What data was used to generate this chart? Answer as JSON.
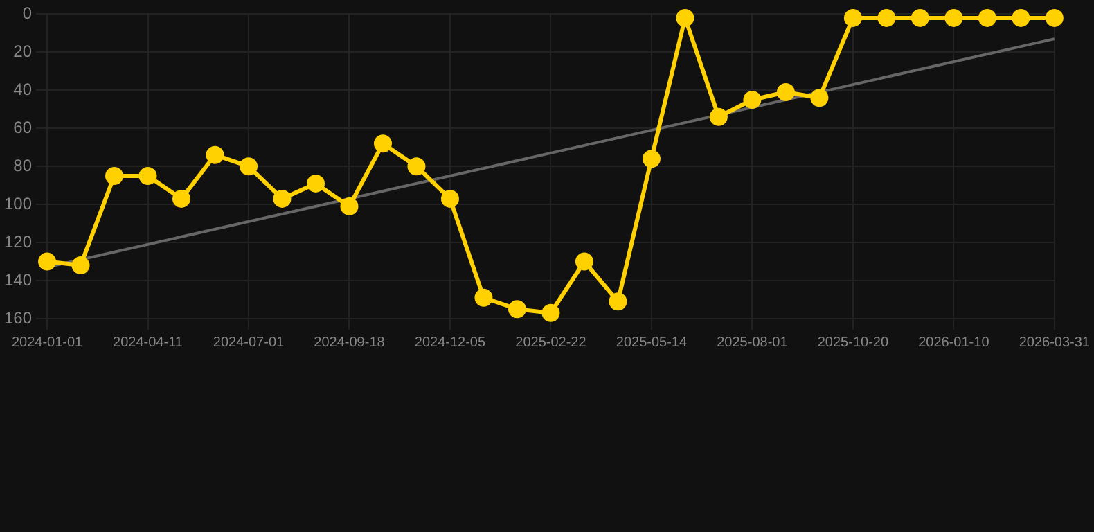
{
  "chart_data": {
    "type": "line",
    "categories": [
      "2024-01-01",
      null,
      null,
      "2024-04-11",
      null,
      null,
      "2024-07-01",
      null,
      null,
      "2024-09-18",
      null,
      null,
      "2024-12-05",
      null,
      null,
      "2025-02-22",
      null,
      null,
      "2025-05-14",
      null,
      null,
      "2025-08-01",
      null,
      null,
      "2025-10-20",
      null,
      null,
      "2026-01-10",
      null,
      null,
      "2026-03-31"
    ],
    "series": [
      {
        "type": "line",
        "color": "#ffd100",
        "marker": "circle",
        "values": [
          130,
          132,
          85,
          85,
          97,
          74,
          80,
          97,
          89,
          101,
          68,
          80,
          97,
          149,
          155,
          157,
          130,
          151,
          76,
          2,
          54,
          45,
          41,
          44,
          2,
          2,
          2,
          2,
          2,
          2,
          2
        ]
      },
      {
        "type": "line",
        "color": "#666666",
        "marker": "none",
        "values": [
          133,
          null,
          null,
          null,
          null,
          null,
          null,
          null,
          null,
          null,
          null,
          null,
          null,
          null,
          null,
          null,
          null,
          null,
          null,
          null,
          null,
          null,
          null,
          null,
          null,
          null,
          null,
          null,
          null,
          null,
          13
        ]
      }
    ],
    "ylim": [
      160,
      0
    ],
    "yticks": [
      0,
      20,
      40,
      60,
      80,
      100,
      120,
      140,
      160
    ],
    "grid": true,
    "legend": false
  }
}
